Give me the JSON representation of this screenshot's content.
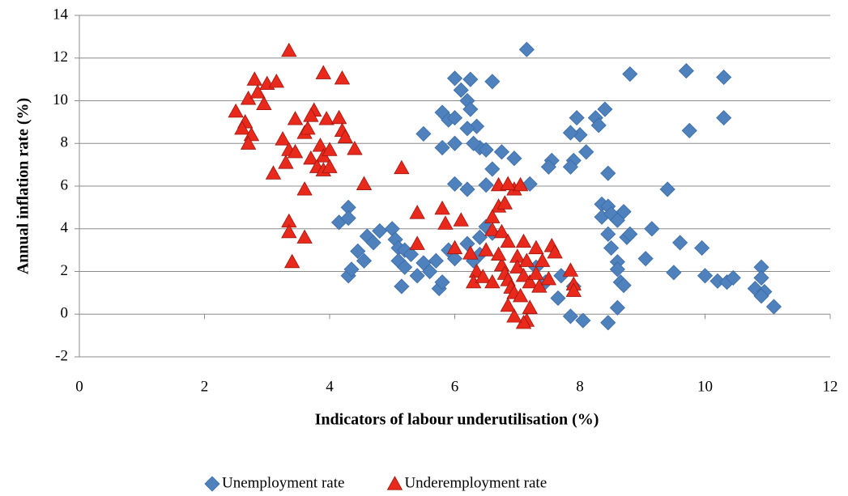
{
  "chart_data": {
    "type": "scatter",
    "x_label": "Indicators of labour underutilisation (%)",
    "y_label": "Annual inflation rate (%)",
    "xlim": [
      0,
      12
    ],
    "xticks": [
      0,
      2,
      4,
      6,
      8,
      10,
      12
    ],
    "ylim": [
      -2,
      14
    ],
    "yticks": [
      -2,
      0,
      2,
      4,
      6,
      8,
      10,
      12,
      14
    ],
    "grid": true,
    "legend": "bottom",
    "series": [
      {
        "name": "Unemployment rate",
        "color": "#4f81bd",
        "marker": "diamond",
        "x": [
          7.15,
          6.0,
          6.25,
          6.6,
          6.1,
          6.2,
          6.25,
          5.8,
          5.9,
          6.0,
          8.8,
          9.7,
          10.3,
          10.3,
          9.75,
          8.4,
          8.25,
          8.3,
          7.95,
          8.0,
          7.85,
          8.1,
          7.9,
          7.85,
          8.45,
          7.55,
          7.5,
          7.2,
          6.75,
          6.95,
          6.4,
          6.5,
          6.3,
          6.35,
          6.2,
          6.0,
          5.8,
          5.5,
          6.6,
          6.0,
          6.2,
          6.5,
          8.35,
          8.45,
          8.35,
          8.5,
          8.6,
          8.7,
          8.75,
          8.8,
          8.45,
          8.5,
          9.15,
          9.4,
          9.6,
          9.95,
          8.6,
          8.6,
          8.65,
          8.7,
          9.05,
          9.5,
          10.0,
          10.2,
          10.35,
          10.45,
          10.8,
          10.9,
          10.9,
          10.95,
          10.9,
          11.1,
          8.6,
          8.45,
          8.05,
          7.85,
          7.9,
          7.65,
          4.15,
          4.3,
          4.3,
          4.45,
          4.6,
          4.55,
          4.7,
          4.3,
          4.35,
          4.8,
          5.0,
          5.05,
          5.1,
          5.2,
          5.1,
          5.2,
          5.3,
          5.15,
          5.4,
          5.5,
          5.6,
          5.7,
          5.75,
          5.8,
          5.9,
          6.0,
          6.2,
          6.3,
          6.4,
          6.5,
          6.6,
          6.4,
          7.3,
          7.45,
          7.7
        ],
        "y": [
          12.4,
          11.05,
          11.0,
          10.9,
          10.5,
          10.0,
          9.6,
          9.45,
          9.1,
          9.2,
          11.25,
          11.4,
          11.1,
          9.2,
          8.6,
          9.6,
          9.2,
          8.85,
          9.2,
          8.4,
          8.5,
          7.6,
          7.2,
          6.9,
          6.6,
          7.2,
          6.9,
          6.1,
          7.6,
          7.3,
          7.8,
          7.7,
          8.0,
          8.8,
          8.7,
          8.0,
          7.8,
          8.45,
          6.8,
          6.1,
          5.85,
          6.05,
          5.15,
          5.05,
          4.55,
          4.7,
          4.4,
          4.8,
          3.6,
          3.75,
          3.75,
          3.1,
          4.0,
          5.85,
          3.35,
          3.1,
          2.45,
          2.1,
          1.5,
          1.35,
          2.6,
          1.95,
          1.8,
          1.55,
          1.5,
          1.7,
          1.2,
          2.2,
          1.7,
          1.05,
          0.85,
          0.35,
          0.3,
          -0.4,
          -0.3,
          -0.1,
          1.3,
          0.75,
          4.3,
          5.0,
          4.5,
          2.95,
          3.65,
          2.5,
          3.35,
          1.8,
          2.1,
          3.9,
          4.0,
          3.5,
          3.1,
          3.0,
          2.5,
          2.2,
          2.8,
          1.3,
          1.8,
          2.4,
          2.0,
          2.5,
          1.2,
          1.5,
          3.0,
          2.6,
          3.3,
          2.5,
          3.6,
          4.1,
          3.8,
          2.8,
          2.2,
          1.5,
          1.8
        ]
      },
      {
        "name": "Underemployment rate",
        "color": "#e8291c",
        "marker": "triangle",
        "x": [
          3.35,
          2.8,
          3.0,
          3.15,
          2.7,
          2.85,
          2.95,
          2.5,
          2.65,
          2.6,
          2.75,
          2.7,
          3.25,
          3.35,
          3.3,
          3.1,
          3.45,
          3.6,
          3.65,
          3.75,
          3.7,
          3.9,
          4.2,
          3.95,
          4.15,
          4.2,
          4.25,
          3.85,
          3.9,
          4.0,
          3.45,
          3.7,
          3.8,
          3.9,
          4.0,
          4.4,
          4.55,
          3.6,
          3.35,
          3.35,
          3.6,
          3.4,
          5.15,
          5.4,
          5.8,
          5.85,
          6.1,
          5.4,
          6.0,
          6.25,
          6.5,
          6.6,
          6.7,
          6.8,
          6.7,
          6.95,
          7.05,
          6.85,
          6.6,
          6.75,
          6.85,
          7.1,
          7.3,
          7.55,
          7.6,
          6.35,
          6.3,
          6.45,
          6.6,
          6.75,
          6.8,
          6.85,
          6.9,
          7.0,
          7.0,
          6.95,
          7.05,
          7.1,
          7.15,
          7.2,
          7.3,
          7.35,
          7.4,
          7.5,
          7.2,
          7.15,
          7.1,
          6.95,
          6.85,
          7.85,
          7.9,
          7.9,
          6.7
        ],
        "y": [
          12.35,
          11.0,
          10.8,
          10.9,
          10.1,
          10.4,
          9.85,
          9.5,
          9.0,
          8.7,
          8.4,
          8.0,
          8.2,
          7.7,
          7.1,
          6.6,
          9.15,
          8.5,
          8.7,
          9.55,
          9.3,
          11.3,
          11.05,
          9.15,
          9.2,
          8.6,
          8.3,
          7.9,
          7.4,
          7.7,
          7.6,
          7.3,
          6.9,
          6.75,
          6.9,
          7.75,
          6.1,
          5.85,
          4.35,
          3.85,
          3.6,
          2.45,
          6.85,
          4.75,
          4.95,
          4.25,
          4.4,
          3.3,
          3.1,
          2.85,
          3.0,
          3.95,
          5.05,
          5.2,
          6.05,
          5.85,
          6.05,
          6.1,
          4.55,
          3.85,
          3.4,
          3.4,
          3.1,
          3.2,
          2.9,
          2.0,
          1.5,
          1.75,
          1.5,
          2.3,
          1.9,
          1.6,
          1.25,
          2.7,
          2.2,
          1.0,
          0.85,
          1.8,
          2.5,
          1.5,
          1.9,
          1.3,
          2.5,
          1.65,
          0.3,
          -0.3,
          -0.4,
          -0.1,
          0.4,
          2.05,
          1.4,
          1.1,
          2.8
        ]
      }
    ]
  }
}
